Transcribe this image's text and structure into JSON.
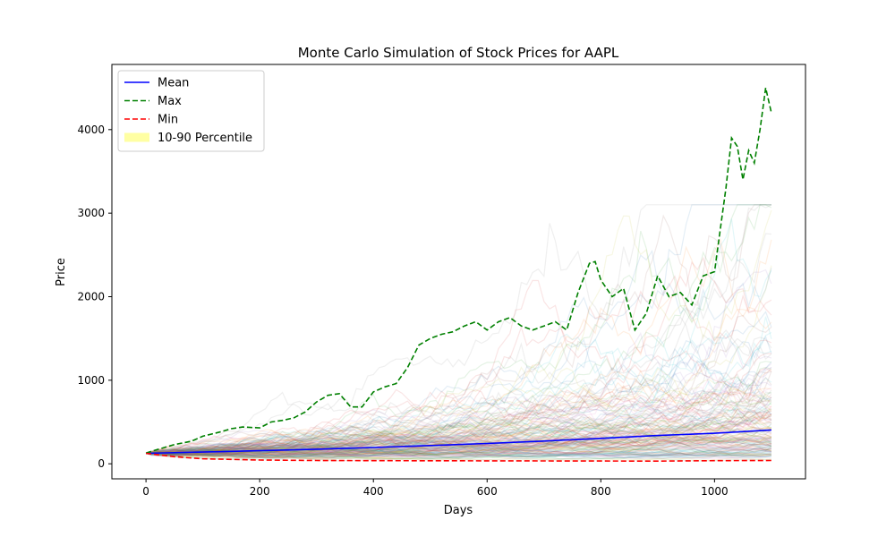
{
  "chart_data": {
    "type": "line",
    "title": "Monte Carlo Simulation of Stock Prices for AAPL",
    "xlabel": "Days",
    "ylabel": "Price",
    "xlim": [
      -60,
      1160
    ],
    "ylim": [
      -180,
      4780
    ],
    "xticks": [
      0,
      200,
      400,
      600,
      800,
      1000
    ],
    "yticks": [
      0,
      1000,
      2000,
      3000,
      4000
    ],
    "grid": false,
    "legend_position": "top-left",
    "background_paths": {
      "description_only_in_script": false,
      "colors": [
        "#1f77b4",
        "#ff7f0e",
        "#2ca02c",
        "#d62728",
        "#9467bd",
        "#8c564b",
        "#e377c2",
        "#7f7f7f",
        "#bcbd22",
        "#17becf"
      ]
    },
    "series": [
      {
        "name": "Mean",
        "style": "solid",
        "color": "#0000ff",
        "x": [
          0,
          100,
          200,
          300,
          400,
          500,
          600,
          700,
          800,
          900,
          1000,
          1100
        ],
        "y": [
          125,
          140,
          156,
          175,
          195,
          218,
          243,
          272,
          304,
          339,
          365,
          405
        ]
      },
      {
        "name": "Max",
        "style": "dashed",
        "color": "#008000",
        "x": [
          0,
          20,
          50,
          80,
          100,
          130,
          150,
          170,
          200,
          220,
          240,
          260,
          280,
          300,
          320,
          340,
          360,
          380,
          400,
          420,
          440,
          460,
          480,
          500,
          520,
          540,
          560,
          580,
          600,
          620,
          640,
          660,
          680,
          700,
          720,
          740,
          760,
          780,
          790,
          800,
          820,
          840,
          860,
          880,
          900,
          920,
          940,
          960,
          980,
          1000,
          1010,
          1020,
          1030,
          1040,
          1050,
          1060,
          1070,
          1080,
          1090,
          1100
        ],
        "y": [
          130,
          170,
          230,
          270,
          330,
          380,
          420,
          440,
          430,
          500,
          520,
          550,
          620,
          740,
          820,
          840,
          680,
          680,
          860,
          920,
          960,
          1150,
          1420,
          1500,
          1550,
          1580,
          1650,
          1700,
          1600,
          1700,
          1750,
          1650,
          1600,
          1650,
          1700,
          1600,
          2050,
          2400,
          2420,
          2200,
          2000,
          2100,
          1600,
          1800,
          2250,
          2000,
          2050,
          1900,
          2250,
          2300,
          2800,
          3300,
          3900,
          3800,
          3400,
          3750,
          3600,
          4000,
          4500,
          4200
        ]
      },
      {
        "name": "Min",
        "style": "dashed",
        "color": "#ff0000",
        "x": [
          0,
          50,
          100,
          200,
          300,
          400,
          500,
          600,
          700,
          800,
          900,
          1000,
          1100
        ],
        "y": [
          125,
          85,
          60,
          45,
          40,
          38,
          36,
          35,
          34,
          33,
          32,
          38,
          40
        ]
      },
      {
        "name": "10-90 Percentile",
        "style": "band",
        "color": "#ffff66",
        "x": [
          0,
          1100
        ],
        "y_low": [
          125,
          125
        ],
        "y_high": [
          125,
          125
        ]
      }
    ]
  }
}
